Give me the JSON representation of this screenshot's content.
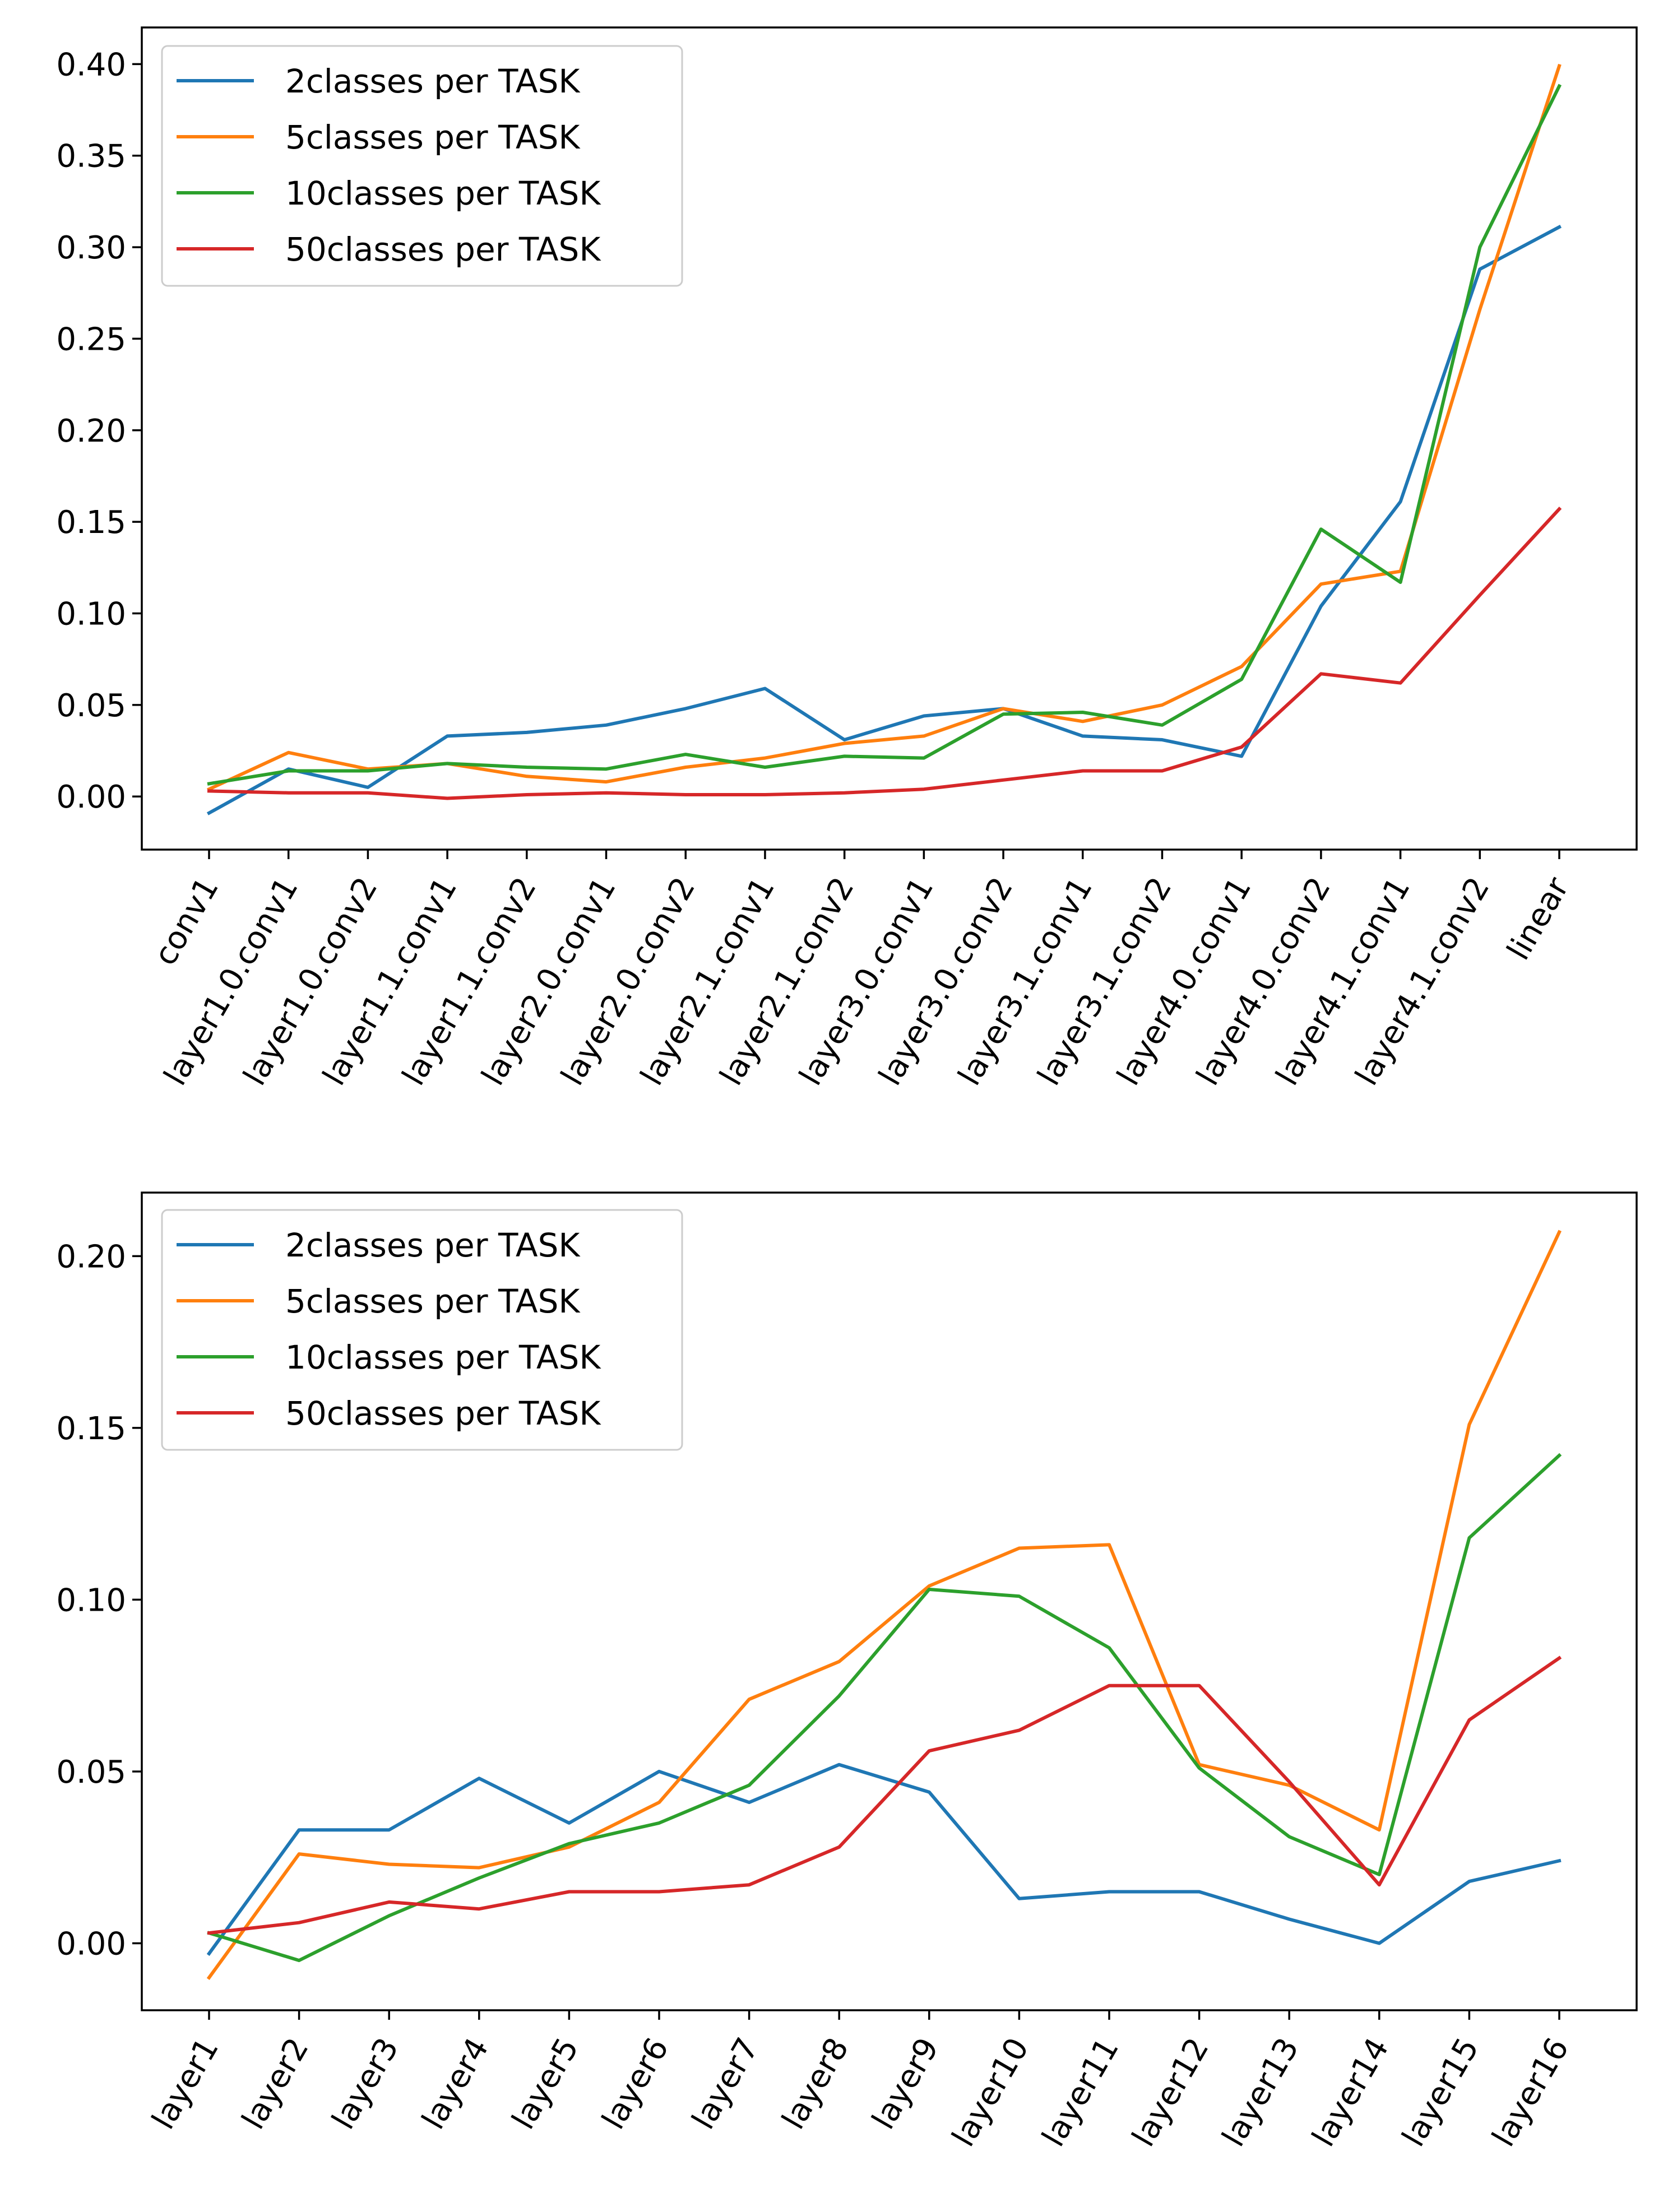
{
  "chart_data": [
    {
      "type": "line",
      "title": "",
      "xlabel": "",
      "ylabel": "",
      "grid": false,
      "legend_location": "upper-left",
      "categories": [
        "conv1",
        "layer1.0.conv1",
        "layer1.0.conv2",
        "layer1.1.conv1",
        "layer1.1.conv2",
        "layer2.0.conv1",
        "layer2.0.conv2",
        "layer2.1.conv1",
        "layer2.1.conv2",
        "layer3.0.conv1",
        "layer3.0.conv2",
        "layer3.1.conv1",
        "layer3.1.conv2",
        "layer4.0.conv1",
        "layer4.0.conv2",
        "layer4.1.conv1",
        "layer4.1.conv2",
        "linear"
      ],
      "ylim": [
        -0.029,
        0.42
      ],
      "yticks": [
        0.0,
        0.05,
        0.1,
        0.15,
        0.2,
        0.25,
        0.3,
        0.35,
        0.4
      ],
      "ytick_labels": [
        "0.00",
        "0.05",
        "0.10",
        "0.15",
        "0.20",
        "0.25",
        "0.30",
        "0.35",
        "0.40"
      ],
      "series": [
        {
          "name": "2classes per TASK",
          "color": "#1f77b4",
          "values": [
            -0.009,
            0.015,
            0.005,
            0.033,
            0.035,
            0.039,
            0.048,
            0.059,
            0.031,
            0.044,
            0.048,
            0.033,
            0.031,
            0.022,
            0.104,
            0.161,
            0.288,
            0.311
          ]
        },
        {
          "name": "5classes per TASK",
          "color": "#ff7f0e",
          "values": [
            0.004,
            0.024,
            0.015,
            0.018,
            0.011,
            0.008,
            0.016,
            0.021,
            0.029,
            0.033,
            0.048,
            0.041,
            0.05,
            0.071,
            0.116,
            0.123,
            0.266,
            0.399
          ]
        },
        {
          "name": "10classes per TASK",
          "color": "#2ca02c",
          "values": [
            0.007,
            0.014,
            0.014,
            0.018,
            0.016,
            0.015,
            0.023,
            0.016,
            0.022,
            0.021,
            0.045,
            0.046,
            0.039,
            0.064,
            0.146,
            0.117,
            0.3,
            0.388
          ]
        },
        {
          "name": "50classes per TASK",
          "color": "#d62728",
          "values": [
            0.003,
            0.002,
            0.002,
            -0.001,
            0.001,
            0.002,
            0.001,
            0.001,
            0.002,
            0.004,
            0.009,
            0.014,
            0.014,
            0.027,
            0.067,
            0.062,
            0.11,
            0.157
          ]
        }
      ]
    },
    {
      "type": "line",
      "title": "",
      "xlabel": "",
      "ylabel": "",
      "grid": false,
      "legend_location": "upper-left",
      "categories": [
        "layer1",
        "layer2",
        "layer3",
        "layer4",
        "layer5",
        "layer6",
        "layer7",
        "layer8",
        "layer9",
        "layer10",
        "layer11",
        "layer12",
        "layer13",
        "layer14",
        "layer15",
        "layer16"
      ],
      "ylim": [
        -0.0195,
        0.2185
      ],
      "yticks": [
        0.0,
        0.05,
        0.1,
        0.15,
        0.2
      ],
      "ytick_labels": [
        "0.00",
        "0.05",
        "0.10",
        "0.15",
        "0.20"
      ],
      "series": [
        {
          "name": "2classes per TASK",
          "color": "#1f77b4",
          "values": [
            -0.003,
            0.033,
            0.033,
            0.048,
            0.035,
            0.05,
            0.041,
            0.052,
            0.044,
            0.013,
            0.015,
            0.015,
            0.007,
            0.0,
            0.018,
            0.024
          ]
        },
        {
          "name": "5classes per TASK",
          "color": "#ff7f0e",
          "values": [
            -0.01,
            0.026,
            0.023,
            0.022,
            0.028,
            0.041,
            0.071,
            0.082,
            0.104,
            0.115,
            0.116,
            0.052,
            0.046,
            0.033,
            0.151,
            0.207
          ]
        },
        {
          "name": "10classes per TASK",
          "color": "#2ca02c",
          "values": [
            0.003,
            -0.005,
            0.008,
            0.019,
            0.029,
            0.035,
            0.046,
            0.072,
            0.103,
            0.101,
            0.086,
            0.051,
            0.031,
            0.02,
            0.118,
            0.142
          ]
        },
        {
          "name": "50classes per TASK",
          "color": "#d62728",
          "values": [
            0.003,
            0.006,
            0.012,
            0.01,
            0.015,
            0.015,
            0.017,
            0.028,
            0.056,
            0.062,
            0.075,
            0.075,
            0.047,
            0.017,
            0.065,
            0.083
          ]
        }
      ]
    }
  ]
}
